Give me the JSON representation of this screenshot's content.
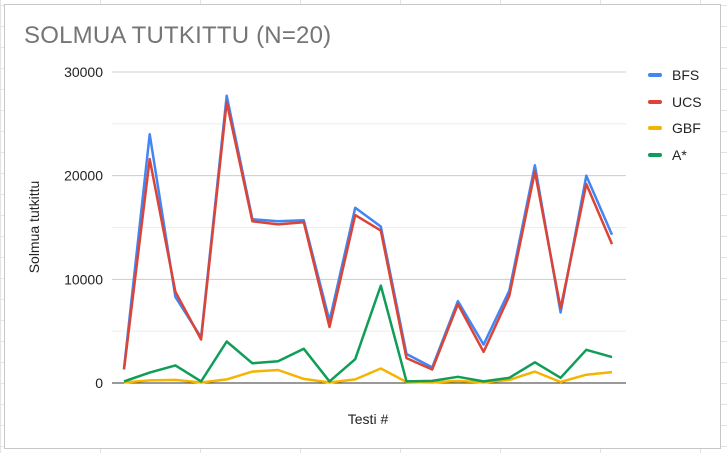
{
  "chart_data": {
    "type": "line",
    "title": "SOLMUA TUTKITTU (N=20)",
    "xlabel": "Testi #",
    "ylabel": "Solmua tutkittu",
    "ylim": [
      0,
      30000
    ],
    "yticks": [
      0,
      10000,
      20000,
      30000
    ],
    "grid": true,
    "legend_position": "right",
    "x": [
      1,
      2,
      3,
      4,
      5,
      6,
      7,
      8,
      9,
      10,
      11,
      12,
      13,
      14,
      15,
      16,
      17,
      18,
      19,
      20
    ],
    "series": [
      {
        "name": "BFS",
        "color": "#4285f4",
        "values": [
          1400,
          24000,
          8300,
          4400,
          27700,
          15800,
          15600,
          15700,
          6000,
          16900,
          15100,
          2800,
          1500,
          7900,
          3700,
          8900,
          21000,
          6800,
          20000,
          14300
        ]
      },
      {
        "name": "UCS",
        "color": "#db4437",
        "values": [
          1300,
          21600,
          8800,
          4200,
          27100,
          15600,
          15300,
          15500,
          5400,
          16200,
          14700,
          2400,
          1300,
          7600,
          3000,
          8400,
          20400,
          7200,
          19200,
          13400
        ]
      },
      {
        "name": "GBF",
        "color": "#f4b400",
        "values": [
          50,
          250,
          300,
          50,
          350,
          1100,
          1250,
          400,
          50,
          350,
          1400,
          100,
          50,
          200,
          50,
          300,
          1100,
          100,
          800,
          1050
        ]
      },
      {
        "name": "A*",
        "color": "#0f9d58",
        "values": [
          150,
          1000,
          1700,
          150,
          4000,
          1900,
          2100,
          3300,
          150,
          2300,
          9400,
          150,
          200,
          600,
          150,
          500,
          2000,
          500,
          3200,
          2500
        ]
      }
    ]
  }
}
